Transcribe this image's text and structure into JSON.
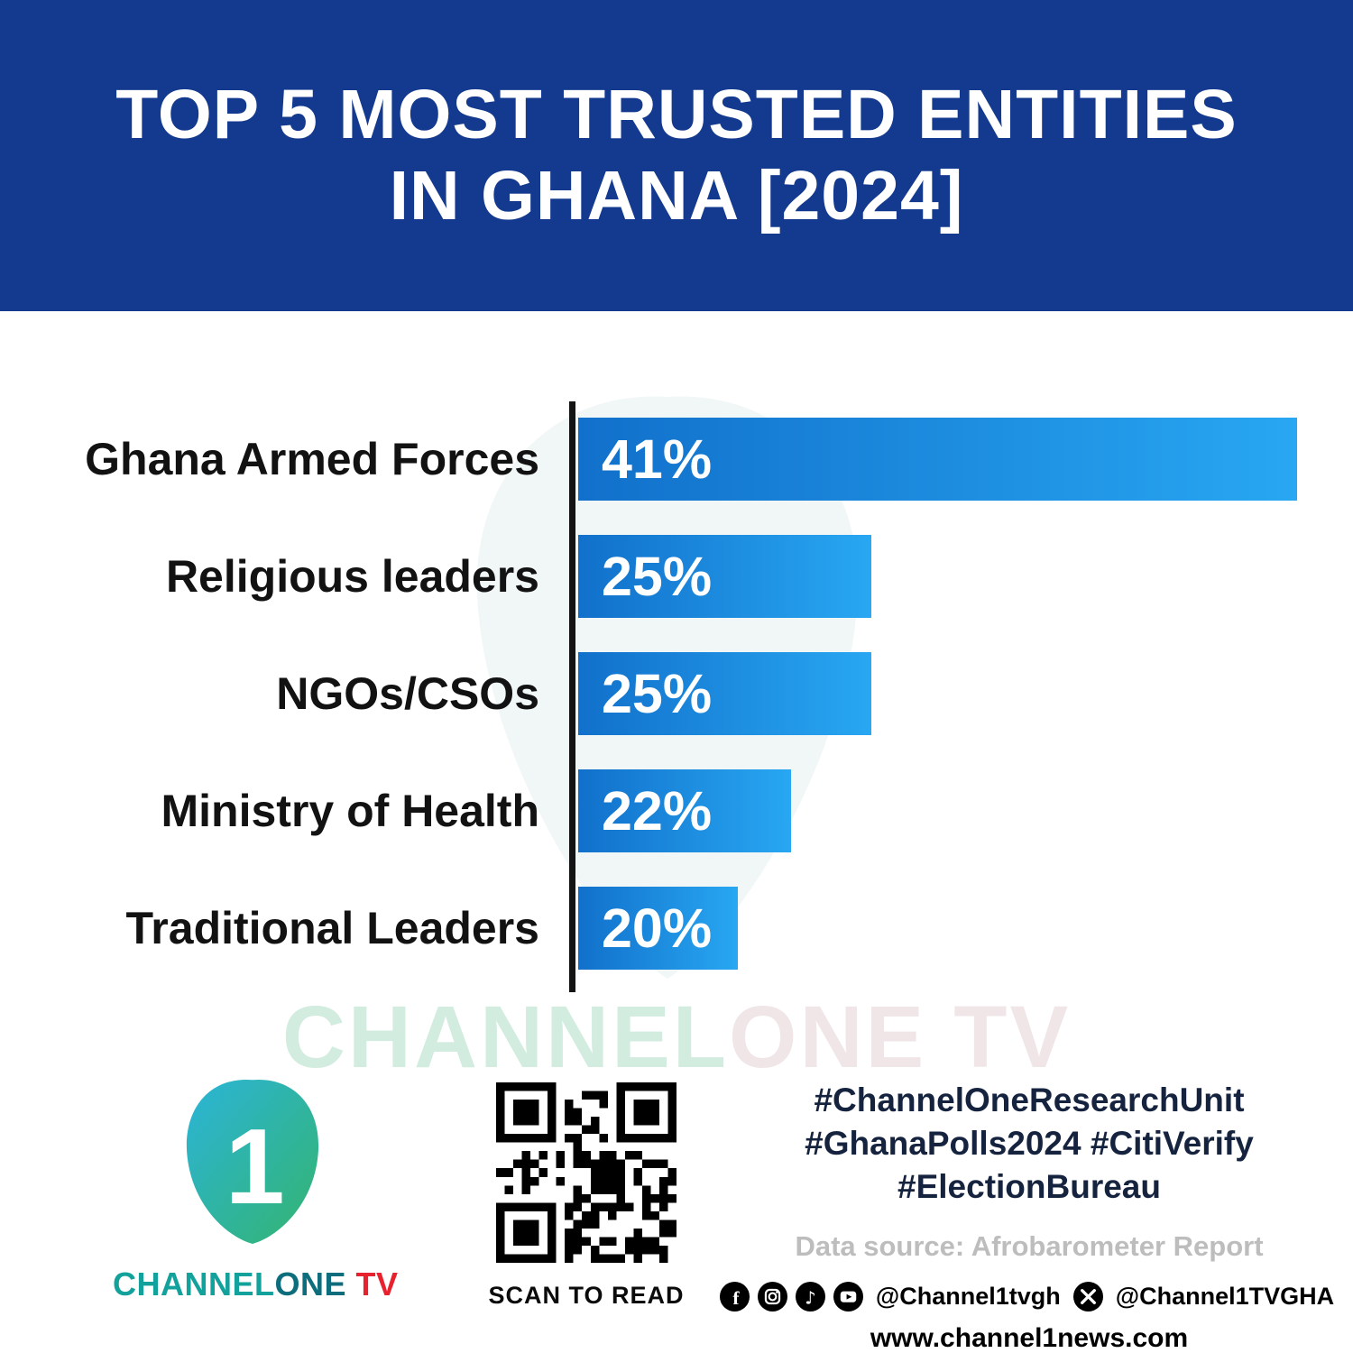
{
  "header": {
    "title_line1": "TOP 5 MOST TRUSTED ENTITIES",
    "title_line2": "IN GHANA [2024]"
  },
  "chart_data": {
    "type": "bar",
    "orientation": "horizontal",
    "title": "Top 5 Most Trusted Entities in Ghana [2024]",
    "categories": [
      "Ghana Armed Forces",
      "Religious leaders",
      "NGOs/CSOs",
      "Ministry of Health",
      "Traditional Leaders"
    ],
    "values": [
      41,
      25,
      25,
      22,
      20
    ],
    "value_labels": [
      "41%",
      "25%",
      "25%",
      "22%",
      "20%"
    ],
    "xlabel": "",
    "ylabel": "",
    "axis_range_displayed": [
      14,
      41
    ],
    "grid": false,
    "legend": false,
    "bar_gradient": [
      "#1170cb",
      "#28a7f2"
    ]
  },
  "watermark": {
    "part1": "CHANNEL",
    "part2": "ONE TV"
  },
  "footer": {
    "logo_numeral": "1",
    "logo_text_channel": "CHANNEL",
    "logo_text_one": "ONE",
    "logo_text_tv": " TV",
    "qr_caption": "SCAN TO READ",
    "hashtags_line1": "#ChannelOneResearchUnit",
    "hashtags_line2": "#GhanaPolls2024 #CitiVerify",
    "hashtags_line3": "#ElectionBureau",
    "data_source": "Data source: Afrobarometer Report",
    "handle_main": "@Channel1tvgh",
    "handle_x": "@Channel1TVGHA",
    "website": "www.channel1news.com"
  },
  "colors": {
    "header_bg": "#143a8f",
    "bar_start": "#1170cb",
    "bar_end": "#28a7f2",
    "accent_teal": "#12a19b",
    "accent_red": "#e8212e"
  }
}
